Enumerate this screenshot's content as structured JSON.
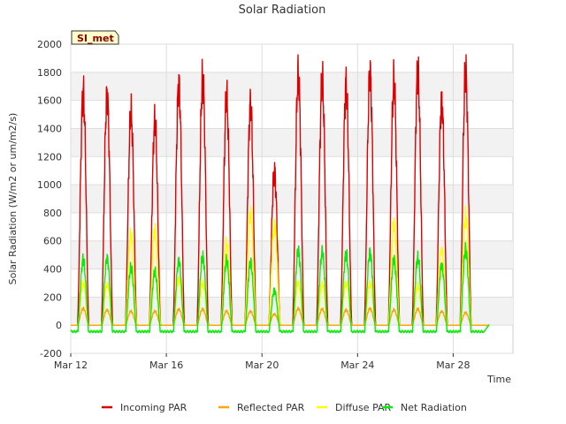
{
  "chart_data": {
    "type": "line",
    "title": "Solar Radiation",
    "xlabel": "Time",
    "ylabel": "Solar Radiation (W/m2 or um/m2/s)",
    "site_label": "SI_met",
    "xlim": [
      0,
      18.5
    ],
    "ylim": [
      -200,
      2000
    ],
    "y_ticks": [
      -200,
      0,
      200,
      400,
      600,
      800,
      1000,
      1200,
      1400,
      1600,
      1800,
      2000
    ],
    "x_ticks": [
      {
        "value": 0,
        "label": "Mar 12"
      },
      {
        "value": 4,
        "label": "Mar 16"
      },
      {
        "value": 8,
        "label": "Mar 20"
      },
      {
        "value": 12,
        "label": "Mar 24"
      },
      {
        "value": 16,
        "label": "Mar 28"
      }
    ],
    "grid": true,
    "legend_position": "bottom",
    "days": [
      0.8,
      1.8,
      2.8,
      3.8,
      4.8,
      5.8,
      6.8,
      7.8,
      8.8,
      9.8,
      10.8,
      11.8,
      12.8,
      13.8,
      14.8,
      15.8,
      16.8,
      17.8
    ],
    "series": [
      {
        "name": "Incoming PAR",
        "color": "#dd0000",
        "daily_peaks": [
          1660,
          1640,
          1510,
          1450,
          1720,
          1760,
          1620,
          1580,
          1100,
          1790,
          1750,
          1720,
          1800,
          1730,
          1800,
          1600,
          1800,
          0
        ],
        "night_value": 0
      },
      {
        "name": "Reflected PAR",
        "color": "#ffa500",
        "daily_peaks": [
          120,
          110,
          100,
          100,
          115,
          115,
          100,
          100,
          80,
          120,
          115,
          110,
          120,
          110,
          115,
          100,
          90,
          0
        ],
        "night_value": 0
      },
      {
        "name": "Diffuse PAR",
        "color": "#ffff00",
        "daily_peaks": [
          300,
          290,
          640,
          670,
          330,
          300,
          580,
          800,
          720,
          300,
          290,
          300,
          300,
          710,
          280,
          540,
          780,
          0
        ],
        "night_value": 0
      },
      {
        "name": "Net Radiation",
        "color": "#00ee00",
        "daily_peaks": [
          470,
          480,
          410,
          380,
          460,
          490,
          460,
          450,
          250,
          530,
          520,
          510,
          520,
          460,
          480,
          430,
          540,
          0
        ],
        "night_value": -45
      }
    ]
  }
}
